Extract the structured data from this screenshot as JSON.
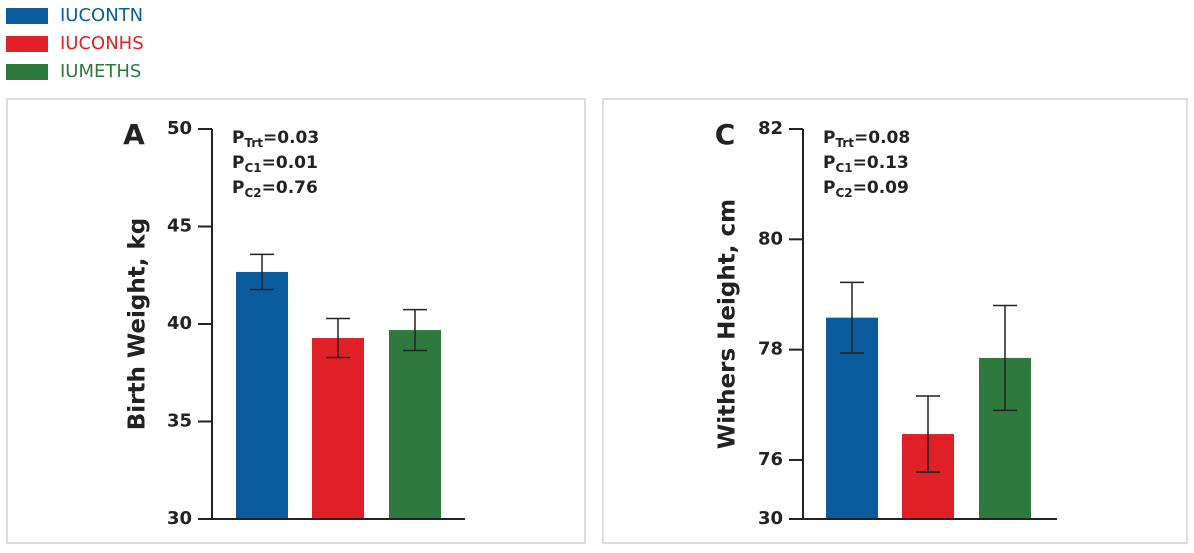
{
  "legend": {
    "names": [
      "IUCONTN",
      "IUCONHS",
      "IUMETHS"
    ],
    "colors": [
      "#0a5c9c",
      "#e01f26",
      "#2e7a3e"
    ]
  },
  "chart_data": [
    {
      "type": "bar",
      "panel": "A",
      "y_label": "Birth Weight, kg",
      "values": [
        42.67,
        39.28,
        39.69
      ],
      "errors": [
        0.9,
        1.0,
        1.05
      ],
      "ylim": [
        30,
        50
      ],
      "yticks": [
        30,
        35,
        40,
        45,
        50
      ],
      "annotations": [
        {
          "main": "P",
          "sub": "Trt",
          "rest": "=0.03"
        },
        {
          "main": "P",
          "sub": "C1",
          "rest": "=0.01"
        },
        {
          "main": "P",
          "sub": "C2",
          "rest": "=0.76"
        }
      ]
    },
    {
      "type": "bar",
      "panel": "C",
      "y_label": "Withers Height, cm",
      "values": [
        78.58,
        76.47,
        77.85
      ],
      "errors": [
        0.64,
        0.69,
        0.95
      ],
      "ylim": [
        74.93,
        82
      ],
      "yticks": [
        76,
        78,
        80,
        82
      ],
      "axis_break_label": 30,
      "annotations": [
        {
          "main": "P",
          "sub": "Trt",
          "rest": "=0.08"
        },
        {
          "main": "P",
          "sub": "C1",
          "rest": "=0.13"
        },
        {
          "main": "P",
          "sub": "C2",
          "rest": "=0.09"
        }
      ]
    }
  ]
}
